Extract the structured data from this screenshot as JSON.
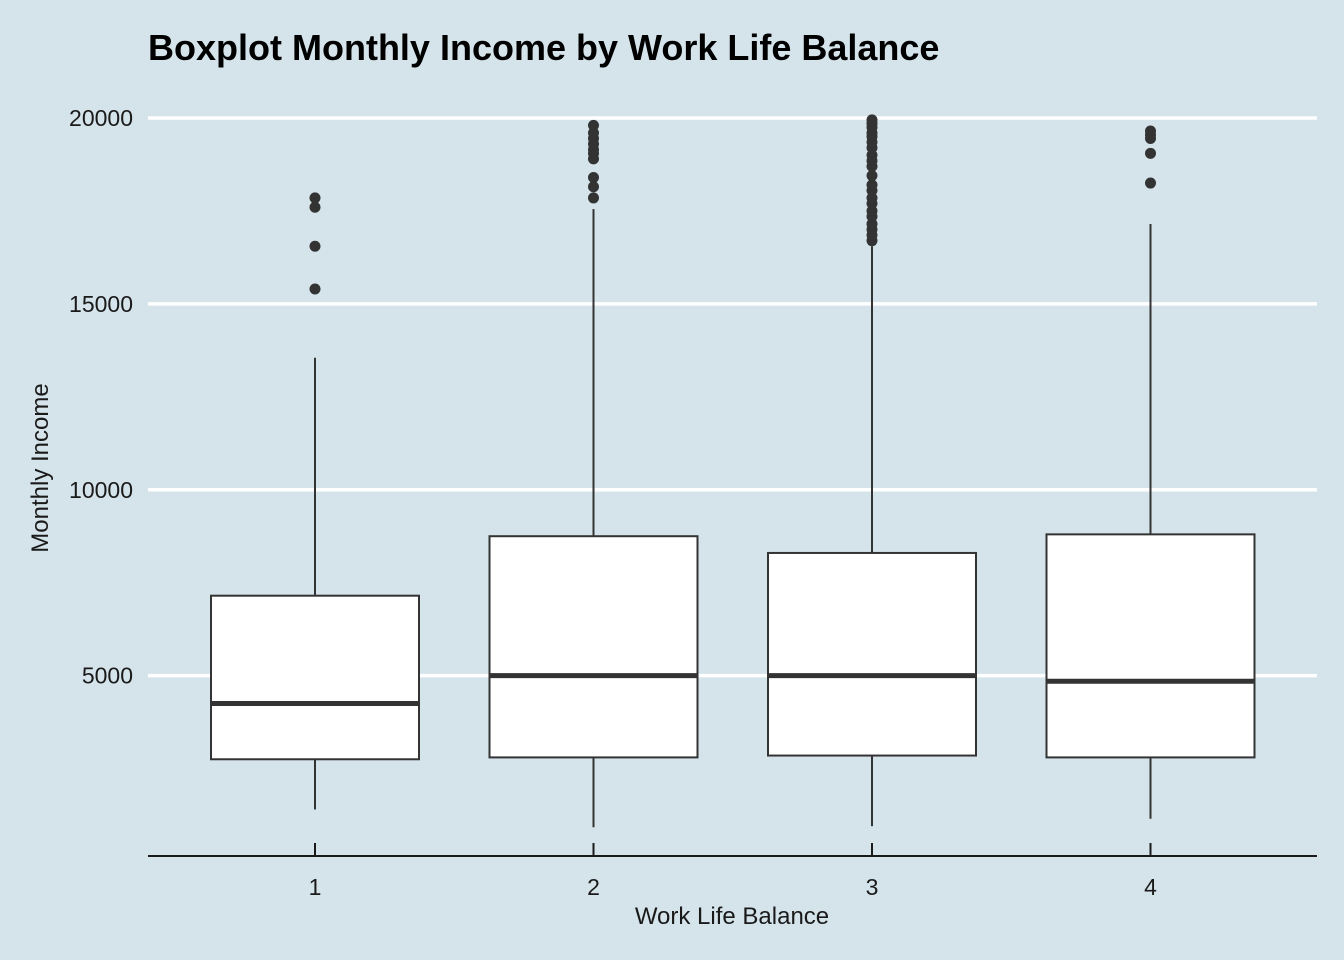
{
  "colors": {
    "background": "#d5e4eb",
    "grid": "#ffffff",
    "box_fill": "#ffffff",
    "stroke": "#333333",
    "text": "#1a1a1a"
  },
  "chart_data": {
    "type": "boxplot",
    "title": "Boxplot Monthly Income by Work Life Balance",
    "xlabel": "Work Life Balance",
    "ylabel": "Monthly Income",
    "categories": [
      "1",
      "2",
      "3",
      "4"
    ],
    "ylim": [
      0,
      20000
    ],
    "yticks": [
      5000,
      10000,
      15000,
      20000
    ],
    "grid": "horizontal-major",
    "boxes": [
      {
        "category": "1",
        "lower_whisker": 1400,
        "q1": 2750,
        "median": 4250,
        "q3": 7150,
        "upper_whisker": 13550,
        "outliers": [
          15400,
          16550,
          17600,
          17850
        ]
      },
      {
        "category": "2",
        "lower_whisker": 920,
        "q1": 2800,
        "median": 5000,
        "q3": 8750,
        "upper_whisker": 17550,
        "outliers": [
          17850,
          18150,
          18400,
          18900,
          19050,
          19150,
          19300,
          19450,
          19600,
          19800
        ]
      },
      {
        "category": "3",
        "lower_whisker": 950,
        "q1": 2850,
        "median": 5000,
        "q3": 8300,
        "upper_whisker": 16550,
        "outliers": [
          16700,
          16850,
          17000,
          17150,
          17350,
          17500,
          17700,
          17850,
          18050,
          18200,
          18450,
          18700,
          18850,
          19000,
          19200,
          19350,
          19500,
          19600,
          19750,
          19850,
          19950
        ]
      },
      {
        "category": "4",
        "lower_whisker": 1150,
        "q1": 2800,
        "median": 4850,
        "q3": 8800,
        "upper_whisker": 17150,
        "outliers": [
          18250,
          19050,
          19450,
          19550,
          19650
        ]
      }
    ]
  }
}
